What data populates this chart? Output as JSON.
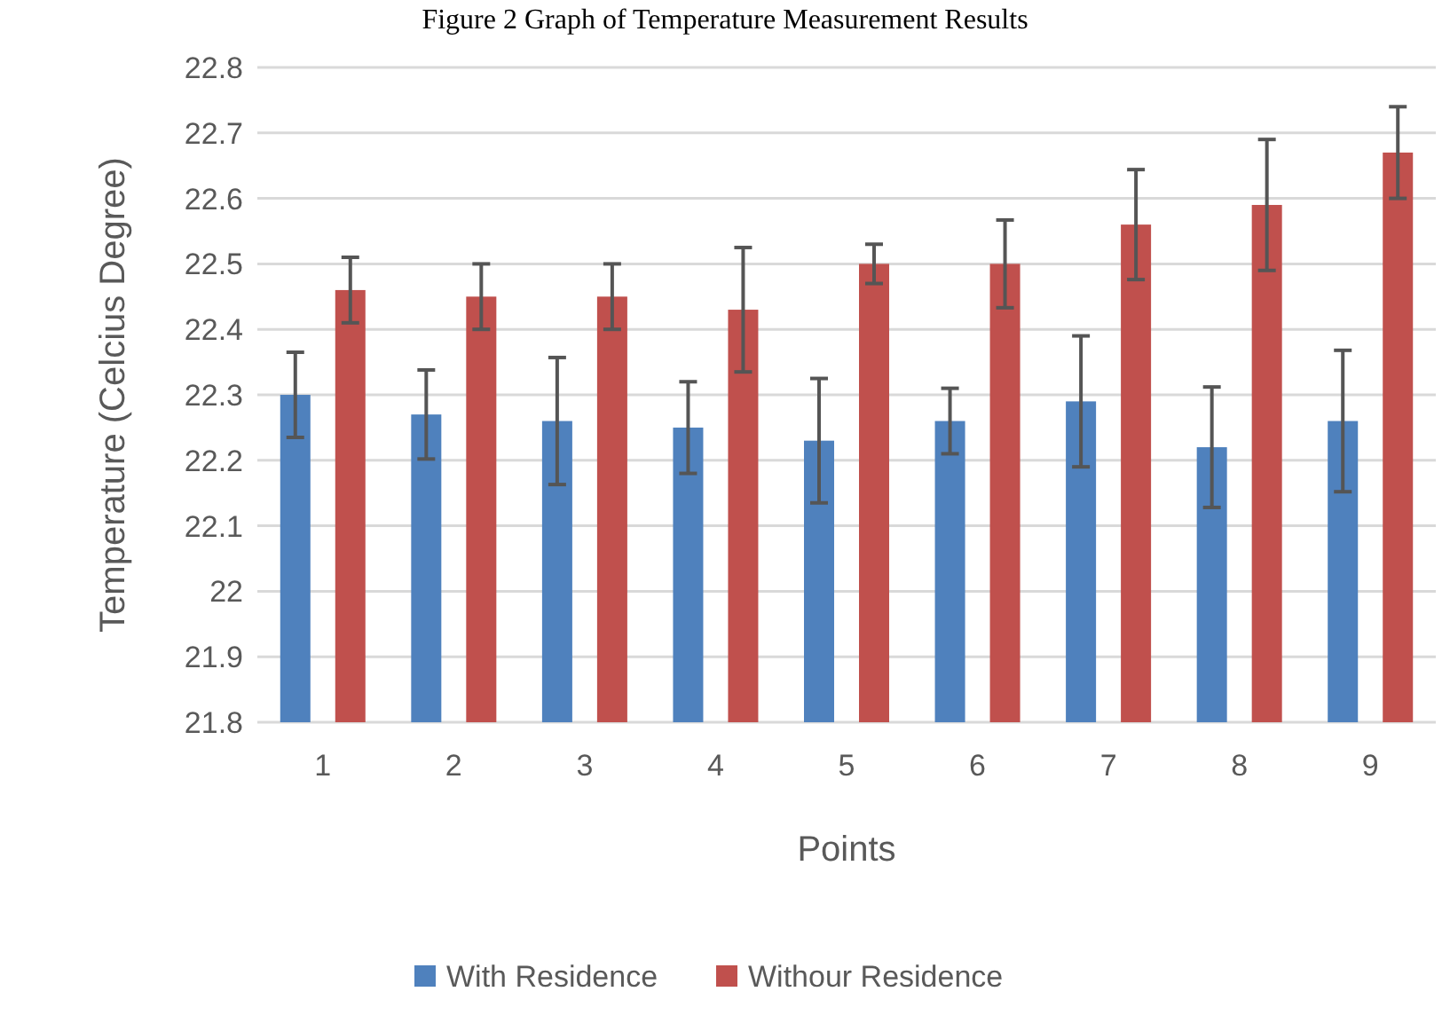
{
  "chart_data": {
    "type": "bar",
    "title": "Figure 2 Graph of Temperature Measurement Results",
    "xlabel": "Points",
    "ylabel": "Temperature (Celcius Degree)",
    "categories": [
      "1",
      "2",
      "3",
      "4",
      "5",
      "6",
      "7",
      "8",
      "9"
    ],
    "series": [
      {
        "name": "With Residence",
        "color": "#4f81bd",
        "values": [
          22.3,
          22.27,
          22.26,
          22.25,
          22.23,
          22.26,
          22.29,
          22.22,
          22.26
        ],
        "errors": [
          0.065,
          0.068,
          0.097,
          0.07,
          0.095,
          0.05,
          0.1,
          0.092,
          0.108
        ]
      },
      {
        "name": "Withour Residence",
        "color": "#c0504d",
        "values": [
          22.46,
          22.45,
          22.45,
          22.43,
          22.5,
          22.5,
          22.56,
          22.59,
          22.67
        ],
        "errors": [
          0.05,
          0.05,
          0.05,
          0.095,
          0.03,
          0.067,
          0.084,
          0.1,
          0.07
        ]
      }
    ],
    "ylim": [
      21.8,
      22.8
    ],
    "yticks": [
      21.8,
      21.9,
      22,
      22.1,
      22.2,
      22.3,
      22.4,
      22.5,
      22.6,
      22.7,
      22.8
    ],
    "grid": "y",
    "legend": "bottom"
  }
}
